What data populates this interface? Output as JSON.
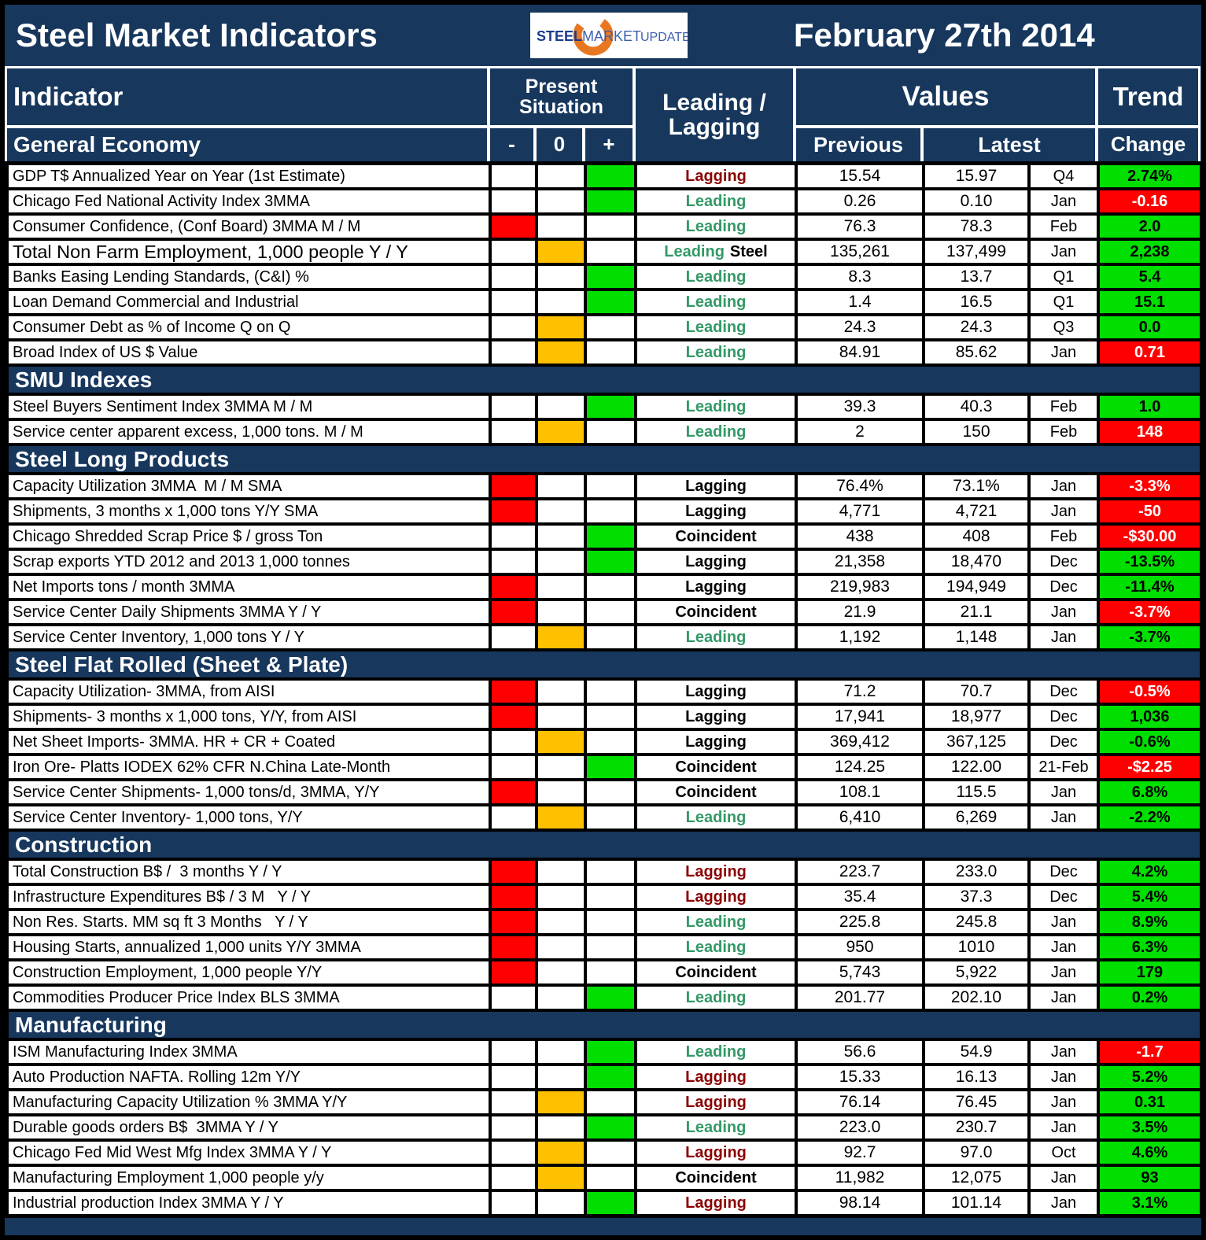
{
  "title_bar": {
    "title": "Steel Market Indicators",
    "date": "February 27th 2014",
    "logo": {
      "steel": "STEEL",
      "market": "MARKET",
      "update": "UPDATE"
    }
  },
  "columns": {
    "indicator": "Indicator",
    "present_situation": "Present Situation",
    "minus": "-",
    "zero": "0",
    "plus": "+",
    "leading_lagging": "Leading / Lagging",
    "values": "Values",
    "previous": "Previous",
    "latest": "Latest",
    "trend": "Trend",
    "change": "Change"
  },
  "colors": {
    "navy": "#17375D",
    "green_fill": "#00DF00",
    "red_fill": "#FF0000",
    "yellow_fill": "#FFC000",
    "leading_text": "#339966",
    "lagging_text_maroon": "#8B0000",
    "coincident_text": "#000000",
    "logo_orange": "#E87722",
    "logo_blue_dark": "#1B3C8C",
    "logo_blue_light": "#3B5FAE"
  },
  "sections": [
    {
      "name": "General Economy",
      "in_header": true,
      "rows": [
        {
          "label": "GDP T$ Annualized Year on Year (1st Estimate)",
          "situation": "plus",
          "classification": "Lagging",
          "class_style": "maroon",
          "previous": "15.54",
          "latest": "15.97",
          "period": "Q4",
          "change": "2.74%",
          "change_style": "green"
        },
        {
          "label": "Chicago Fed National Activity Index 3MMA",
          "situation": "plus",
          "classification": "Leading",
          "class_style": "green",
          "previous": "0.26",
          "latest": "0.10",
          "period": "Jan",
          "change": "-0.16",
          "change_style": "red"
        },
        {
          "label": "Consumer Confidence, (Conf Board) 3MMA M / M",
          "situation": "minus",
          "classification": "Leading",
          "class_style": "green",
          "previous": "76.3",
          "latest": "78.3",
          "period": "Feb",
          "change": "2.0",
          "change_style": "green"
        },
        {
          "label": "Total Non Farm Employment, 1,000 people Y / Y",
          "large": true,
          "situation": "zero",
          "classification": "Leading",
          "class_style": "green",
          "suffix": "Steel",
          "previous": "135,261",
          "latest": "137,499",
          "period": "Jan",
          "change": "2,238",
          "change_style": "green"
        },
        {
          "label": "Banks Easing Lending Standards, (C&I) %",
          "situation": "plus",
          "classification": "Leading",
          "class_style": "green",
          "previous": "8.3",
          "latest": "13.7",
          "period": "Q1",
          "change": "5.4",
          "change_style": "green"
        },
        {
          "label": "Loan Demand Commercial and Industrial",
          "situation": "plus",
          "classification": "Leading",
          "class_style": "green",
          "previous": "1.4",
          "latest": "16.5",
          "period": "Q1",
          "change": "15.1",
          "change_style": "green"
        },
        {
          "label": "Consumer Debt as % of Income Q on Q",
          "situation": "zero",
          "classification": "Leading",
          "class_style": "green",
          "previous": "24.3",
          "latest": "24.3",
          "period": "Q3",
          "change": "0.0",
          "change_style": "green"
        },
        {
          "label": "Broad Index of US $ Value",
          "situation": "zero",
          "classification": "Leading",
          "class_style": "green",
          "previous": "84.91",
          "latest": "85.62",
          "period": "Jan",
          "change": "0.71",
          "change_style": "red"
        }
      ]
    },
    {
      "name": "SMU Indexes",
      "rows": [
        {
          "label": "Steel Buyers Sentiment Index 3MMA M / M",
          "situation": "plus",
          "classification": "Leading",
          "class_style": "green",
          "previous": "39.3",
          "latest": "40.3",
          "period": "Feb",
          "change": "1.0",
          "change_style": "green"
        },
        {
          "label": "Service center apparent excess, 1,000 tons. M / M",
          "situation": "zero",
          "classification": "Leading",
          "class_style": "green",
          "previous": "2",
          "latest": "150",
          "period": "Feb",
          "change": "148",
          "change_style": "red"
        }
      ]
    },
    {
      "name": "Steel Long Products",
      "rows": [
        {
          "label": "Capacity Utilization 3MMA  M / M SMA",
          "situation": "minus",
          "classification": "Lagging",
          "class_style": "black",
          "previous": "76.4%",
          "latest": "73.1%",
          "period": "Jan",
          "change": "-3.3%",
          "change_style": "red"
        },
        {
          "label": "Shipments, 3 months x 1,000 tons Y/Y SMA",
          "situation": "minus",
          "classification": "Lagging",
          "class_style": "black",
          "previous": "4,771",
          "latest": "4,721",
          "period": "Jan",
          "change": "-50",
          "change_style": "red"
        },
        {
          "label": "Chicago Shredded Scrap Price $ / gross Ton",
          "situation": "plus",
          "classification": "Coincident",
          "class_style": "black",
          "previous": "438",
          "latest": "408",
          "period": "Feb",
          "change": "-$30.00",
          "change_style": "red"
        },
        {
          "label": "Scrap exports YTD 2012 and 2013 1,000 tonnes",
          "situation": "plus",
          "classification": "Lagging",
          "class_style": "black",
          "previous": "21,358",
          "latest": "18,470",
          "period": "Dec",
          "change": "-13.5%",
          "change_style": "green"
        },
        {
          "label": "Net Imports tons / month 3MMA",
          "situation": "minus",
          "classification": "Lagging",
          "class_style": "black",
          "previous": "219,983",
          "latest": "194,949",
          "period": "Dec",
          "change": "-11.4%",
          "change_style": "green"
        },
        {
          "label": "Service Center Daily Shipments 3MMA Y / Y",
          "situation": "minus",
          "classification": "Coincident",
          "class_style": "black",
          "previous": "21.9",
          "latest": "21.1",
          "period": "Jan",
          "change": "-3.7%",
          "change_style": "red"
        },
        {
          "label": "Service Center Inventory, 1,000 tons Y / Y",
          "situation": "zero",
          "classification": "Leading",
          "class_style": "green",
          "previous": "1,192",
          "latest": "1,148",
          "period": "Jan",
          "change": "-3.7%",
          "change_style": "green"
        }
      ]
    },
    {
      "name": "Steel Flat Rolled (Sheet & Plate)",
      "rows": [
        {
          "label": "Capacity Utilization- 3MMA, from AISI",
          "situation": "minus",
          "classification": "Lagging",
          "class_style": "black",
          "previous": "71.2",
          "latest": "70.7",
          "period": "Dec",
          "change": "-0.5%",
          "change_style": "red"
        },
        {
          "label": "Shipments- 3 months x 1,000 tons, Y/Y, from AISI",
          "situation": "minus",
          "classification": "Lagging",
          "class_style": "black",
          "previous": "17,941",
          "latest": "18,977",
          "period": "Dec",
          "change": "1,036",
          "change_style": "green"
        },
        {
          "label": "Net Sheet Imports- 3MMA. HR + CR + Coated",
          "situation": "zero",
          "classification": "Lagging",
          "class_style": "black",
          "previous": "369,412",
          "latest": "367,125",
          "period": "Dec",
          "change": "-0.6%",
          "change_style": "green"
        },
        {
          "label": "Iron Ore- Platts IODEX 62% CFR N.China Late-Month",
          "situation": "plus",
          "classification": "Coincident",
          "class_style": "black",
          "previous": "124.25",
          "latest": "122.00",
          "period": "21-Feb",
          "change": "-$2.25",
          "change_style": "red"
        },
        {
          "label": "Service Center Shipments- 1,000 tons/d, 3MMA, Y/Y",
          "situation": "minus",
          "classification": "Coincident",
          "class_style": "black",
          "previous": "108.1",
          "latest": "115.5",
          "period": "Jan",
          "change": "6.8%",
          "change_style": "green"
        },
        {
          "label": "Service Center Inventory- 1,000 tons, Y/Y",
          "situation": "zero",
          "classification": "Leading",
          "class_style": "green",
          "previous": "6,410",
          "latest": "6,269",
          "period": "Jan",
          "change": "-2.2%",
          "change_style": "green"
        }
      ]
    },
    {
      "name": "Construction",
      "rows": [
        {
          "label": "Total Construction B$ /  3 months Y / Y",
          "situation": "minus",
          "classification": "Lagging",
          "class_style": "maroon",
          "previous": "223.7",
          "latest": "233.0",
          "period": "Dec",
          "change": "4.2%",
          "change_style": "green"
        },
        {
          "label": "Infrastructure Expenditures B$ / 3 M   Y / Y",
          "situation": "minus",
          "classification": "Lagging",
          "class_style": "maroon",
          "previous": "35.4",
          "latest": "37.3",
          "period": "Dec",
          "change": "5.4%",
          "change_style": "green"
        },
        {
          "label": "Non Res. Starts. MM sq ft 3 Months   Y / Y",
          "situation": "minus",
          "classification": "Leading",
          "class_style": "green",
          "previous": "225.8",
          "latest": "245.8",
          "period": "Jan",
          "change": "8.9%",
          "change_style": "green"
        },
        {
          "label": "Housing Starts, annualized 1,000 units Y/Y 3MMA",
          "situation": "minus",
          "classification": "Leading",
          "class_style": "green",
          "previous": "950",
          "latest": "1010",
          "period": "Jan",
          "change": "6.3%",
          "change_style": "green"
        },
        {
          "label": "Construction Employment, 1,000 people Y/Y",
          "situation": "minus",
          "classification": "Coincident",
          "class_style": "black",
          "previous": "5,743",
          "latest": "5,922",
          "period": "Jan",
          "change": "179",
          "change_style": "green"
        },
        {
          "label": "Commodities Producer Price Index BLS 3MMA",
          "situation": "plus",
          "classification": "Leading",
          "class_style": "green",
          "previous": "201.77",
          "latest": "202.10",
          "period": "Jan",
          "change": "0.2%",
          "change_style": "green"
        }
      ]
    },
    {
      "name": "Manufacturing",
      "rows": [
        {
          "label": "ISM Manufacturing Index 3MMA",
          "situation": "plus",
          "classification": "Leading",
          "class_style": "green",
          "previous": "56.6",
          "latest": "54.9",
          "period": "Jan",
          "change": "-1.7",
          "change_style": "red"
        },
        {
          "label": "Auto Production NAFTA. Rolling 12m Y/Y",
          "situation": "plus",
          "classification": "Lagging",
          "class_style": "maroon",
          "previous": "15.33",
          "latest": "16.13",
          "period": "Jan",
          "change": "5.2%",
          "change_style": "green"
        },
        {
          "label": "Manufacturing Capacity Utilization % 3MMA Y/Y",
          "situation": "zero",
          "classification": "Lagging",
          "class_style": "maroon",
          "previous": "76.14",
          "latest": "76.45",
          "period": "Jan",
          "change": "0.31",
          "change_style": "green"
        },
        {
          "label": "Durable goods orders B$  3MMA Y / Y",
          "situation": "plus",
          "classification": "Leading",
          "class_style": "green",
          "previous": "223.0",
          "latest": "230.7",
          "period": "Jan",
          "change": "3.5%",
          "change_style": "green"
        },
        {
          "label": "Chicago Fed Mid West Mfg Index 3MMA Y / Y",
          "situation": "zero",
          "classification": "Lagging",
          "class_style": "maroon",
          "previous": "92.7",
          "latest": "97.0",
          "period": "Oct",
          "change": "4.6%",
          "change_style": "green"
        },
        {
          "label": "Manufacturing Employment 1,000 people y/y",
          "situation": "zero",
          "classification": "Coincident",
          "class_style": "black",
          "previous": "11,982",
          "latest": "12,075",
          "period": "Jan",
          "change": "93",
          "change_style": "green"
        },
        {
          "label": "Industrial production Index 3MMA Y / Y",
          "situation": "plus",
          "classification": "Lagging",
          "class_style": "maroon",
          "previous": "98.14",
          "latest": "101.14",
          "period": "Jan",
          "change": "3.1%",
          "change_style": "green"
        }
      ]
    }
  ]
}
